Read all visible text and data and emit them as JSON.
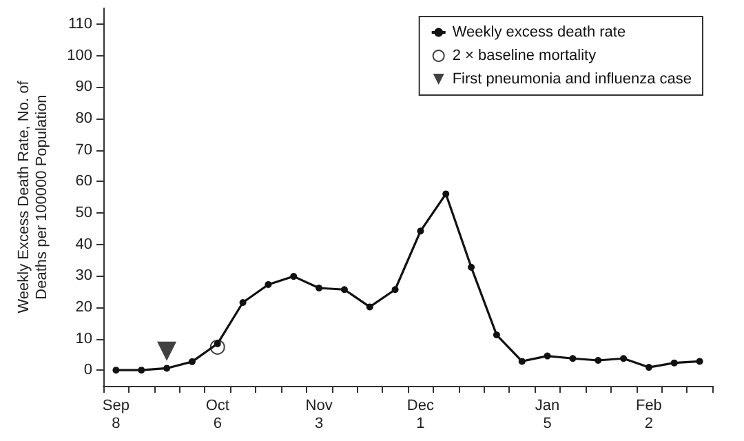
{
  "chart_data": {
    "type": "line",
    "ylabel": "Weekly Excess Death Rate, No. of\nDeaths per 100000 Population",
    "categories": [
      "Sep\n8",
      null,
      null,
      null,
      "Oct\n6",
      null,
      null,
      null,
      "Nov\n3",
      null,
      null,
      null,
      "Dec\n1",
      null,
      null,
      null,
      null,
      "Jan\n5",
      null,
      null,
      null,
      "Feb\n2",
      null,
      null
    ],
    "ylim": [
      -5,
      115
    ],
    "yticks": [
      0,
      10,
      20,
      30,
      40,
      50,
      60,
      70,
      80,
      90,
      100,
      110
    ],
    "grid": false,
    "legend": "top right",
    "series": [
      {
        "name": "Weekly excess death rate",
        "color": "#111111",
        "marker": "circle",
        "values": [
          0,
          0,
          0.6,
          2.7,
          8.4,
          21.5,
          27.2,
          29.8,
          26.1,
          25.6,
          20.1,
          25.6,
          44.2,
          56,
          32.7,
          11.2,
          2.8,
          4.5,
          3.7,
          3.1,
          3.7,
          0.9,
          2.3,
          2.8
        ]
      },
      {
        "name": "2 × baseline mortality",
        "type": "scatter",
        "color": "#111111",
        "marker": "circle",
        "values": [
          null,
          null,
          null,
          null,
          7.3,
          null,
          null,
          null,
          null,
          null,
          null,
          null,
          null,
          null,
          null,
          null,
          null,
          null,
          null,
          null,
          null,
          null,
          null,
          null
        ]
      },
      {
        "name": "First pneumonia and influenza case",
        "type": "scatter",
        "color": "#111111",
        "marker": "triangle",
        "values": [
          null,
          null,
          6,
          null,
          null,
          null,
          null,
          null,
          null,
          null,
          null,
          null,
          null,
          null,
          null,
          null,
          null,
          null,
          null,
          null,
          null,
          null,
          null,
          null
        ]
      }
    ]
  }
}
